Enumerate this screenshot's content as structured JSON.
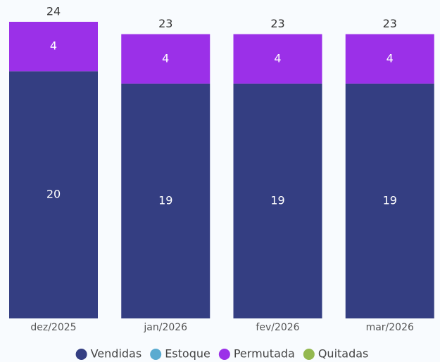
{
  "chart_data": {
    "type": "stacked_bar",
    "categories": [
      "dez/2025",
      "jan/2026",
      "fev/2026",
      "mar/2026"
    ],
    "series": [
      {
        "name": "Vendidas",
        "color": "#343e82",
        "values": [
          20,
          19,
          19,
          19
        ]
      },
      {
        "name": "Estoque",
        "color": "#5aabd0",
        "values": [
          null,
          null,
          null,
          null
        ]
      },
      {
        "name": "Permutada",
        "color": "#9b30e8",
        "values": [
          4,
          4,
          4,
          4
        ]
      },
      {
        "name": "Quitadas",
        "color": "#93b84f",
        "values": [
          null,
          null,
          null,
          null
        ]
      }
    ],
    "totals": [
      24,
      23,
      23,
      23
    ],
    "ylim": [
      0,
      24
    ],
    "legend": "bottom"
  }
}
